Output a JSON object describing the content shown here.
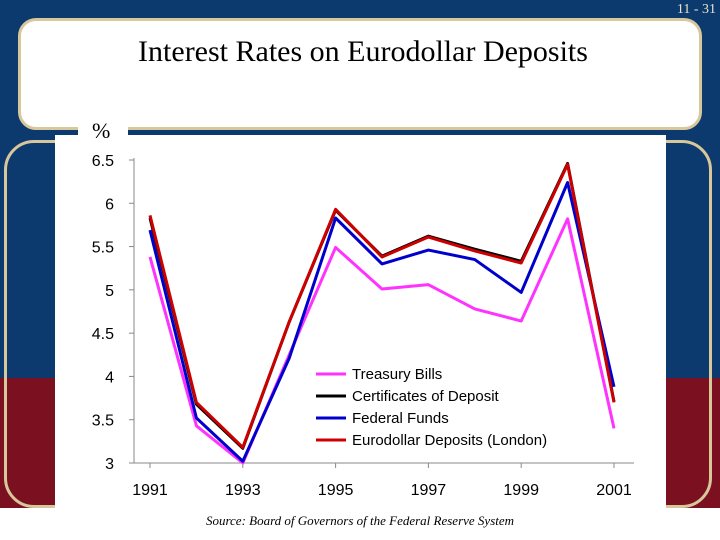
{
  "slide": {
    "page_number": "11 - 31",
    "title": "Interest Rates on Eurodollar Deposits",
    "source": "Source: Board of Governors of the Federal Reserve System"
  },
  "chart_data": {
    "type": "line",
    "title": "Interest Rates on Eurodollar Deposits",
    "ylabel": "%",
    "xlabel": "",
    "x": [
      1991,
      1992,
      1993,
      1994,
      1995,
      1996,
      1997,
      1998,
      1999,
      2000,
      2001
    ],
    "x_tick_labels": [
      "1991",
      "1993",
      "1995",
      "1997",
      "1999",
      "2001"
    ],
    "y_tick_labels": [
      "3",
      "3.5",
      "4",
      "4.5",
      "5",
      "5.5",
      "6",
      "6.5"
    ],
    "ylim": [
      3,
      6.5
    ],
    "grid": false,
    "legend_position": "lower-right",
    "series": [
      {
        "name": "Treasury Bills",
        "color": "#ff33ff",
        "values": [
          5.38,
          3.43,
          3.0,
          4.25,
          5.49,
          5.01,
          5.06,
          4.78,
          4.64,
          5.82,
          3.4
        ]
      },
      {
        "name": "Certificates of Deposit",
        "color": "#000000",
        "values": [
          5.83,
          3.68,
          3.17,
          4.63,
          5.92,
          5.39,
          5.62,
          5.47,
          5.33,
          6.46,
          3.71
        ]
      },
      {
        "name": "Federal Funds",
        "color": "#0000cc",
        "values": [
          5.69,
          3.52,
          3.02,
          4.21,
          5.83,
          5.3,
          5.46,
          5.35,
          4.97,
          6.24,
          3.88
        ]
      },
      {
        "name": "Eurodollar Deposits (London)",
        "color": "#cc0000",
        "values": [
          5.86,
          3.7,
          3.18,
          4.63,
          5.93,
          5.38,
          5.61,
          5.45,
          5.31,
          6.45,
          3.7
        ]
      }
    ]
  }
}
